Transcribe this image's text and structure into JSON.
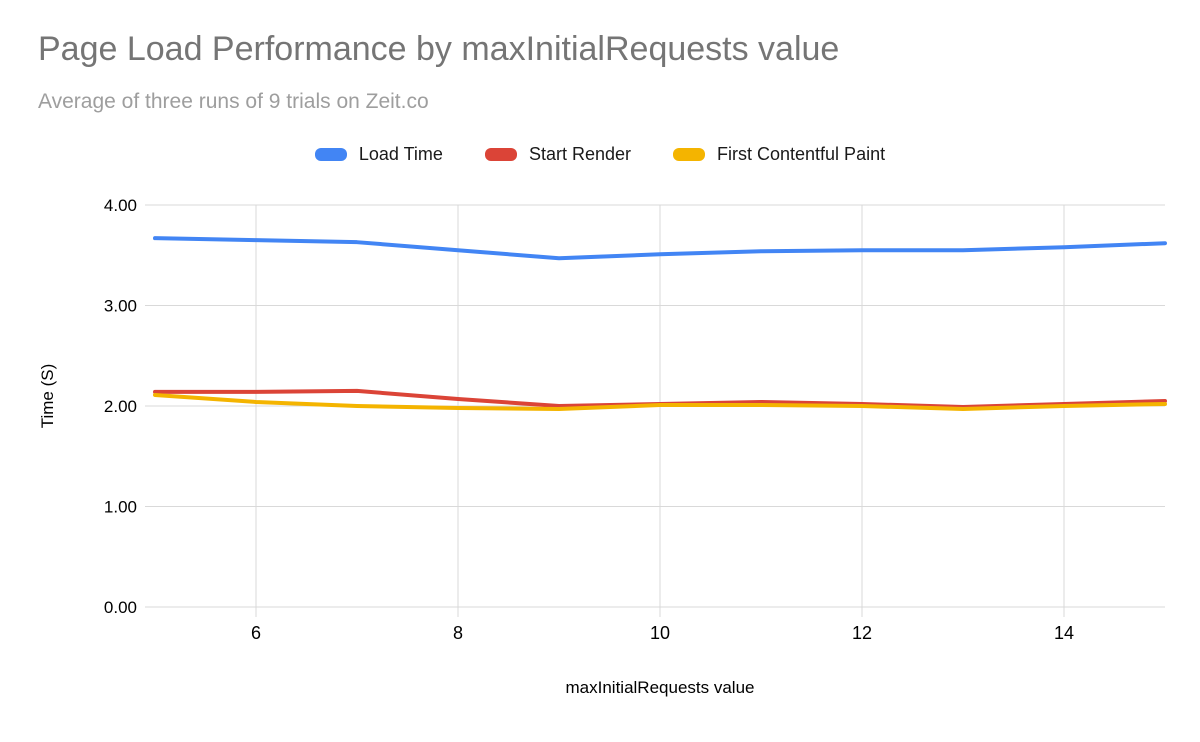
{
  "chart_data": {
    "type": "line",
    "title": "Page Load Performance by maxInitialRequests value",
    "subtitle": "Average of three runs of 9 trials on Zeit.co",
    "xlabel": "maxInitialRequests value",
    "ylabel": "Time (S)",
    "x": [
      5,
      6,
      7,
      8,
      9,
      10,
      11,
      12,
      13,
      14,
      15
    ],
    "xlim": [
      5,
      15
    ],
    "ylim": [
      0,
      4
    ],
    "xticks": [
      6,
      8,
      10,
      12,
      14
    ],
    "ytick_values": [
      0,
      1,
      2,
      3,
      4
    ],
    "yticks": [
      "0.00",
      "1.00",
      "2.00",
      "3.00",
      "4.00"
    ],
    "grid": true,
    "grid_color": "#d9d9d9",
    "legend_position": "top",
    "series": [
      {
        "name": "Load Time",
        "color": "#4285f4",
        "values": [
          3.67,
          3.65,
          3.63,
          3.55,
          3.47,
          3.51,
          3.54,
          3.55,
          3.55,
          3.58,
          3.62
        ]
      },
      {
        "name": "Start Render",
        "color": "#db4437",
        "values": [
          2.14,
          2.14,
          2.15,
          2.07,
          2.0,
          2.02,
          2.04,
          2.02,
          1.99,
          2.02,
          2.05
        ]
      },
      {
        "name": "First Contentful Paint",
        "color": "#f4b400",
        "values": [
          2.11,
          2.04,
          2.0,
          1.98,
          1.97,
          2.01,
          2.01,
          2.0,
          1.97,
          2.0,
          2.02
        ]
      }
    ]
  }
}
